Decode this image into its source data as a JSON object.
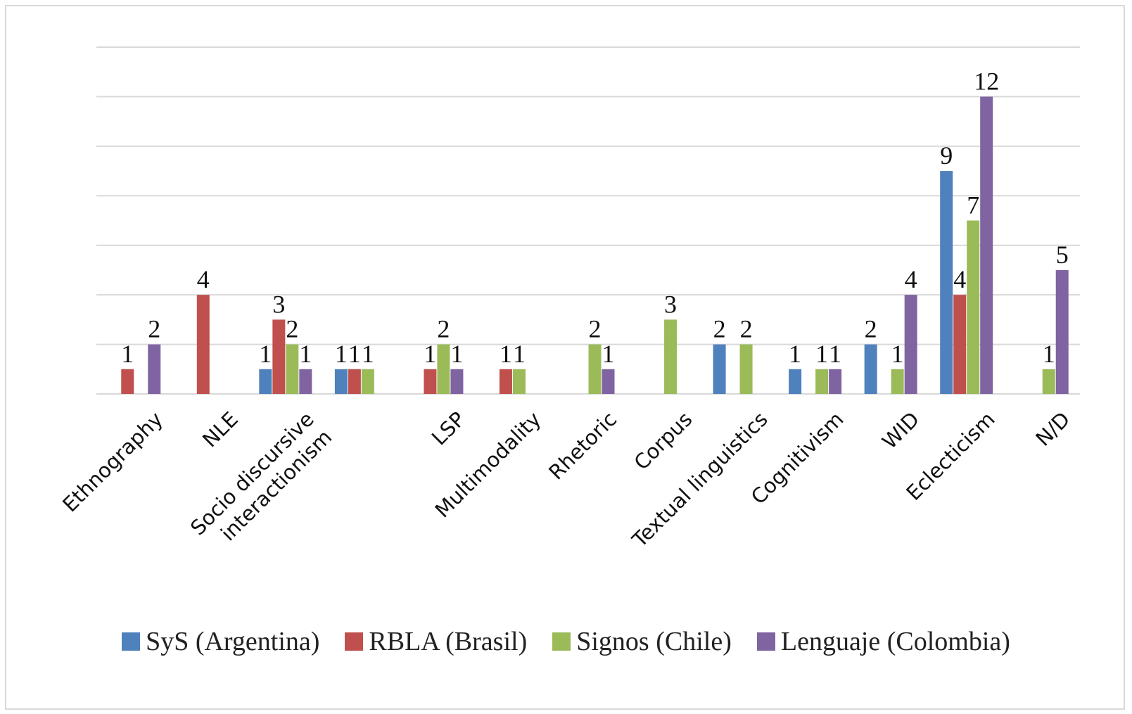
{
  "chart_data": {
    "type": "bar",
    "categories": [
      "Ethnography",
      "NLE",
      "Socio discursive\ninteractionism",
      null,
      "LSP",
      "Multimodality",
      "Rhetoric",
      "Corpus",
      "Textual linguistics",
      "Cognitivism",
      "WID",
      "Eclecticism",
      "N/D"
    ],
    "series": [
      {
        "name": "SyS (Argentina)",
        "color": "#4f81bd",
        "values": [
          null,
          null,
          1,
          1,
          null,
          null,
          null,
          null,
          2,
          1,
          2,
          9,
          null
        ]
      },
      {
        "name": "RBLA (Brasil)",
        "color": "#c0504d",
        "values": [
          1,
          4,
          3,
          1,
          1,
          1,
          null,
          null,
          null,
          null,
          null,
          4,
          null
        ]
      },
      {
        "name": "Signos (Chile)",
        "color": "#9bbb59",
        "values": [
          null,
          null,
          2,
          1,
          2,
          1,
          2,
          3,
          2,
          1,
          1,
          7,
          1
        ]
      },
      {
        "name": "Lenguaje (Colombia)",
        "color": "#8064a2",
        "values": [
          2,
          null,
          1,
          null,
          1,
          null,
          1,
          null,
          null,
          1,
          4,
          12,
          5
        ]
      }
    ],
    "ylim": [
      0,
      14
    ],
    "yticks": [
      0,
      2,
      4,
      6,
      8,
      10,
      12,
      14
    ],
    "grid": true,
    "legend": "bottom"
  }
}
